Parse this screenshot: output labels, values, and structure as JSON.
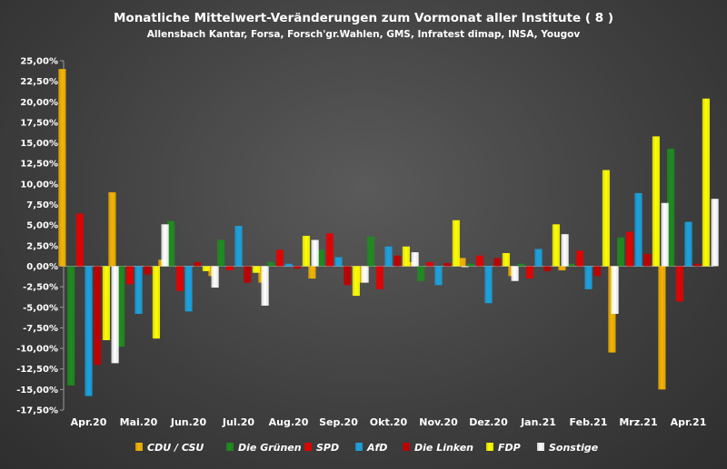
{
  "chart_data": {
    "type": "bar",
    "title": "Monatliche Mittelwert-Veränderungen zum Vormonat aller Institute ( 8 )",
    "subtitle": "Allensbach Kantar, Forsa, Forsch'gr.Wahlen, GMS, Infratest dimap, INSA, Yougov",
    "categories": [
      "Apr.20",
      "Mai.20",
      "Jun.20",
      "Jul.20",
      "Aug.20",
      "Sep.20",
      "Okt.20",
      "Nov.20",
      "Dez.20",
      "Jan.21",
      "Feb.21",
      "Mrz.21",
      "Apr.21"
    ],
    "y_ticks": [
      "25,00%",
      "22,50%",
      "20,00%",
      "17,50%",
      "15,00%",
      "12,50%",
      "10,00%",
      "7,50%",
      "5,00%",
      "2,50%",
      "0,00%",
      "-2,50%",
      "-5,00%",
      "-7,50%",
      "-10,00%",
      "-12,50%",
      "-15,00%",
      "-17,50%"
    ],
    "ylim": [
      -17.5,
      25
    ],
    "y_unit": "%",
    "grid": false,
    "legend_position": "bottom",
    "series": [
      {
        "name": "CDU / CSU",
        "color": "#f5b400",
        "values": [
          24.0,
          9.0,
          0.8,
          -1.2,
          -2.0,
          -1.5,
          -2.0,
          0.5,
          1.0,
          -1.2,
          -0.5,
          -10.5,
          -15.0
        ]
      },
      {
        "name": "Die Grünen",
        "color": "#1e8c1e",
        "values": [
          -14.5,
          -9.8,
          5.5,
          3.2,
          0.5,
          2.0,
          3.6,
          -1.8,
          0.3,
          0.3,
          0.3,
          3.5,
          14.3
        ]
      },
      {
        "name": "SPD",
        "color": "#e60000",
        "values": [
          6.4,
          -2.2,
          -3.0,
          -0.5,
          2.0,
          4.0,
          -2.8,
          0.5,
          1.3,
          -1.5,
          1.9,
          4.2,
          -4.3
        ]
      },
      {
        "name": "AfD",
        "color": "#1aa3e0",
        "values": [
          -15.8,
          -5.8,
          -5.5,
          4.9,
          0.3,
          1.1,
          2.4,
          -2.3,
          -4.5,
          2.1,
          -2.8,
          8.9,
          5.4
        ]
      },
      {
        "name": "Die Linken",
        "color": "#c00000",
        "values": [
          -12.0,
          -1.0,
          0.5,
          -2.0,
          -0.3,
          -2.3,
          1.3,
          0.4,
          1.0,
          -0.6,
          -1.2,
          1.5,
          0.3
        ]
      },
      {
        "name": "FDP",
        "color": "#ffff00",
        "values": [
          -9.0,
          -8.8,
          -0.6,
          -0.8,
          3.7,
          -3.6,
          2.4,
          5.6,
          1.6,
          5.1,
          11.7,
          15.8,
          20.4
        ]
      },
      {
        "name": "Sonstige",
        "color": "#ffffff",
        "values": [
          -11.8,
          5.1,
          -2.6,
          -4.8,
          3.2,
          -2.0,
          1.7,
          -0.1,
          -1.8,
          3.9,
          -5.8,
          7.7,
          8.2
        ]
      }
    ]
  }
}
